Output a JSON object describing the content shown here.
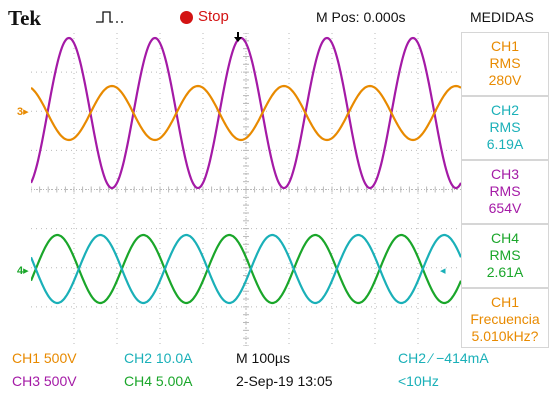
{
  "header": {
    "brand": "Tek",
    "run_state": "Stop",
    "position": "M Pos: 0.000s",
    "measurements_title": "MEDIDAS"
  },
  "channel_markers": {
    "ch3": "3",
    "ch4": "4"
  },
  "measurements": [
    {
      "channel": "CH1",
      "type": "RMS",
      "value": "280V",
      "color": "#e88a00"
    },
    {
      "channel": "CH2",
      "type": "RMS",
      "value": "6.19A",
      "color": "#1ab0b8"
    },
    {
      "channel": "CH3",
      "type": "RMS",
      "value": "654V",
      "color": "#a41aa6"
    },
    {
      "channel": "CH4",
      "type": "RMS",
      "value": "2.61A",
      "color": "#1aa62a"
    },
    {
      "channel": "CH1",
      "type": "Frecuencia",
      "value": "5.010kHz?",
      "color": "#e88a00"
    }
  ],
  "status": {
    "ch1_scale": "CH1  500V",
    "ch3_scale": "CH3  500V",
    "ch2_scale": "CH2  10.0A",
    "ch4_scale": "CH4  5.00A",
    "timebase": "M 100µs",
    "date": "2-Sep-19 13:05",
    "trigger": "CH2 ∕  −414mA",
    "freq": "<10Hz"
  },
  "colors": {
    "ch1": "#e88a00",
    "ch2": "#1ab0b8",
    "ch3": "#a41aa6",
    "ch4": "#1aa62a",
    "grid": "#b9b9b9",
    "stop": "#d31313"
  },
  "icons": {
    "trigger_mode": "pulse-waveform-icon",
    "run_state": "stop-dot-icon",
    "trigger_position": "down-arrow-icon"
  }
}
